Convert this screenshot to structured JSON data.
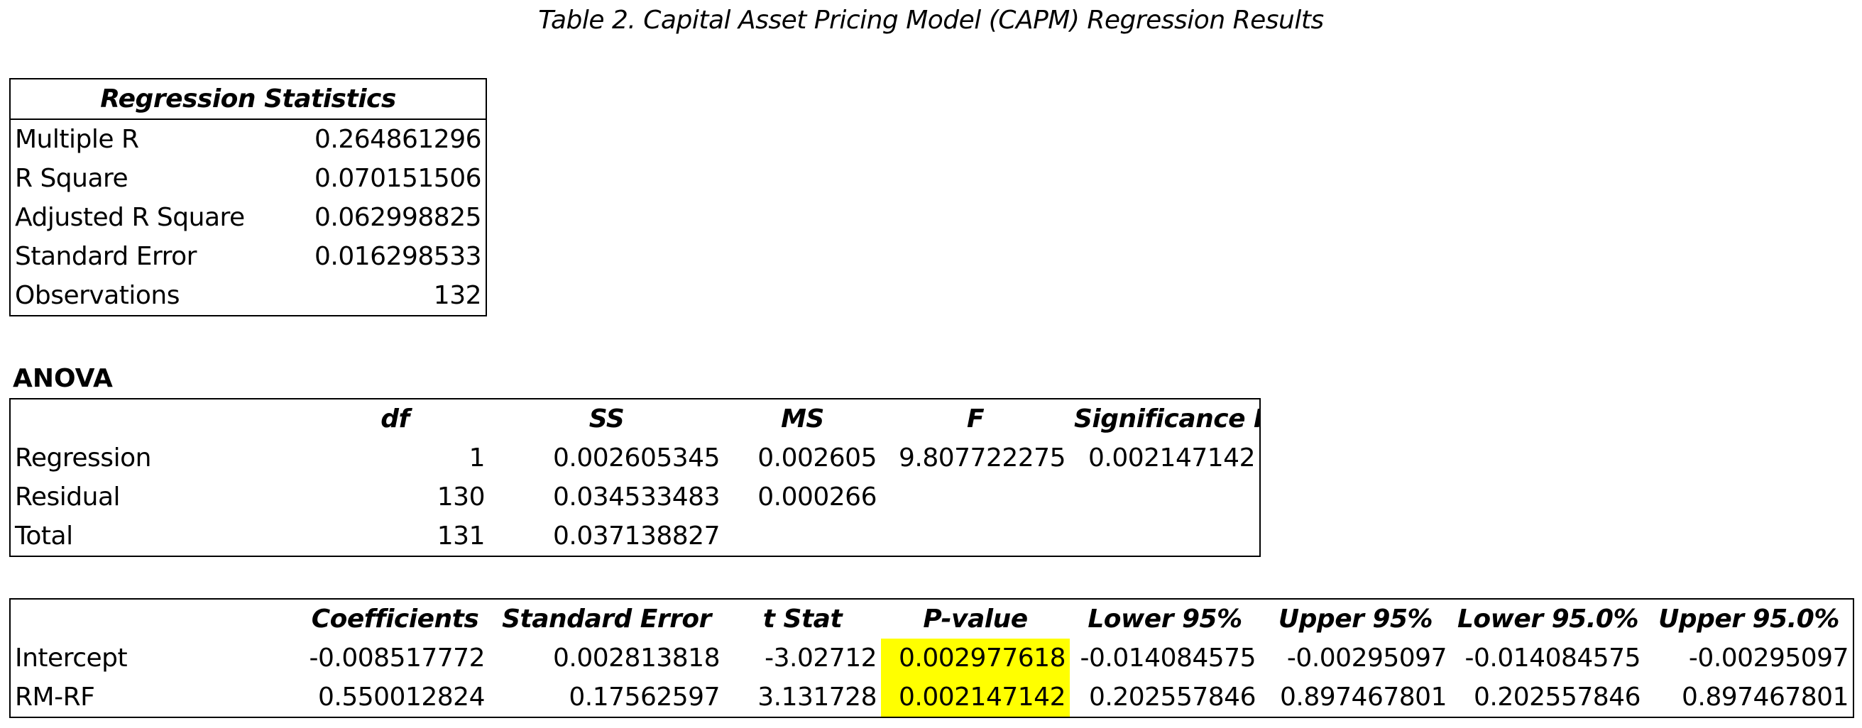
{
  "caption": "Table 2. Capital Asset Pricing Model (CAPM) Regression Results",
  "regression_statistics": {
    "header": "Regression Statistics",
    "rows": [
      {
        "label": "Multiple R",
        "value": "0.264861296"
      },
      {
        "label": "R Square",
        "value": "0.070151506"
      },
      {
        "label": "Adjusted R Square",
        "value": "0.062998825"
      },
      {
        "label": "Standard Error",
        "value": "0.016298533"
      },
      {
        "label": "Observations",
        "value": "132"
      }
    ]
  },
  "anova": {
    "title": "ANOVA",
    "headers": [
      "",
      "df",
      "SS",
      "MS",
      "F",
      "Significance F"
    ],
    "rows": [
      {
        "label": "Regression",
        "df": "1",
        "ss": "0.002605345",
        "ms": "0.002605",
        "f": "9.807722275",
        "sig_f": "0.002147142"
      },
      {
        "label": "Residual",
        "df": "130",
        "ss": "0.034533483",
        "ms": "0.000266",
        "f": "",
        "sig_f": ""
      },
      {
        "label": "Total",
        "df": "131",
        "ss": "0.037138827",
        "ms": "",
        "f": "",
        "sig_f": ""
      }
    ]
  },
  "coefficients": {
    "headers": [
      "",
      "Coefficients",
      "Standard Error",
      "t Stat",
      "P-value",
      "Lower 95%",
      "Upper 95%",
      "Lower 95.0%",
      "Upper 95.0%"
    ],
    "rows": [
      {
        "label": "Intercept",
        "coef": "-0.008517772",
        "se": "0.002813818",
        "t": "-3.02712",
        "p": "0.002977618",
        "lower95": "-0.014084575",
        "upper95": "-0.00295097",
        "lower950": "-0.014084575",
        "upper950": "-0.00295097"
      },
      {
        "label": "RM-RF",
        "coef": "0.550012824",
        "se": "0.17562597",
        "t": "3.131728",
        "p": "0.002147142",
        "lower95": "0.202557846",
        "upper95": "0.897467801",
        "lower950": "0.202557846",
        "upper950": "0.897467801"
      }
    ],
    "highlight_color": "#ffff00"
  }
}
